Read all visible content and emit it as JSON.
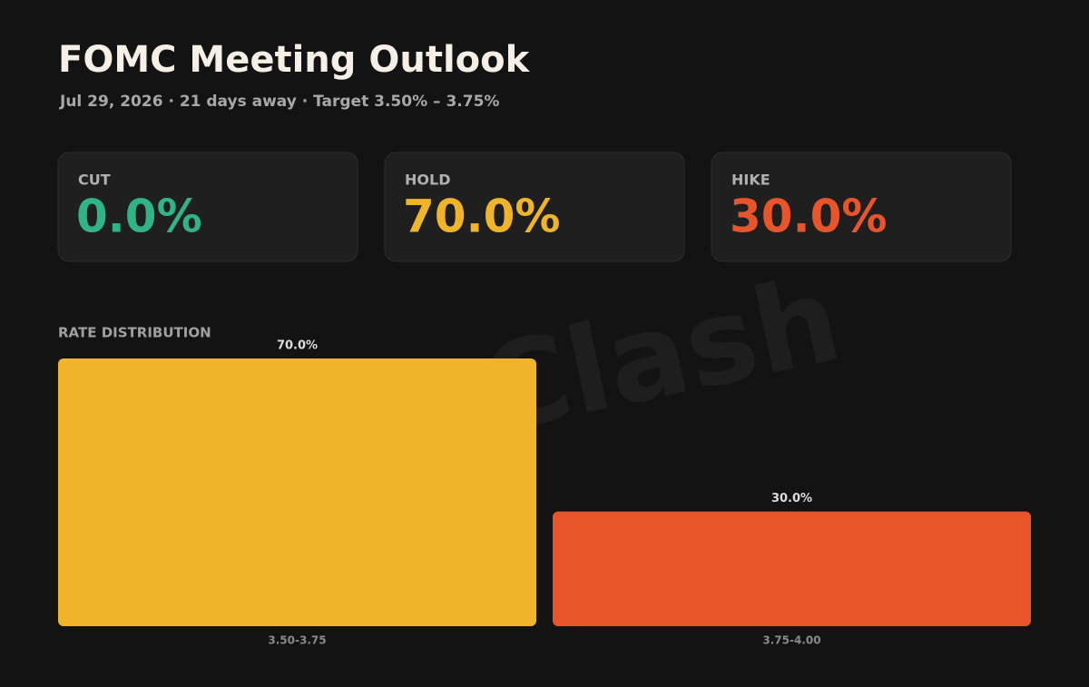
{
  "header": {
    "title": "FOMC Meeting Outlook",
    "subtitle": "Jul 29, 2026 · 21 days away · Target 3.50% – 3.75%"
  },
  "cards": [
    {
      "label": "CUT",
      "value": "0.0%",
      "color": "#2fb489"
    },
    {
      "label": "HOLD",
      "value": "70.0%",
      "color": "#efb42a"
    },
    {
      "label": "HIKE",
      "value": "30.0%",
      "color": "#e8552b"
    }
  ],
  "watermark": "Clash",
  "chart_data": {
    "type": "bar",
    "title": "RATE DISTRIBUTION",
    "categories": [
      "3.50-3.75",
      "3.75-4.00"
    ],
    "values": [
      70,
      30
    ],
    "value_labels": [
      "70.0%",
      "30.0%"
    ],
    "colors": [
      "#efb42a",
      "#e8552b"
    ]
  }
}
